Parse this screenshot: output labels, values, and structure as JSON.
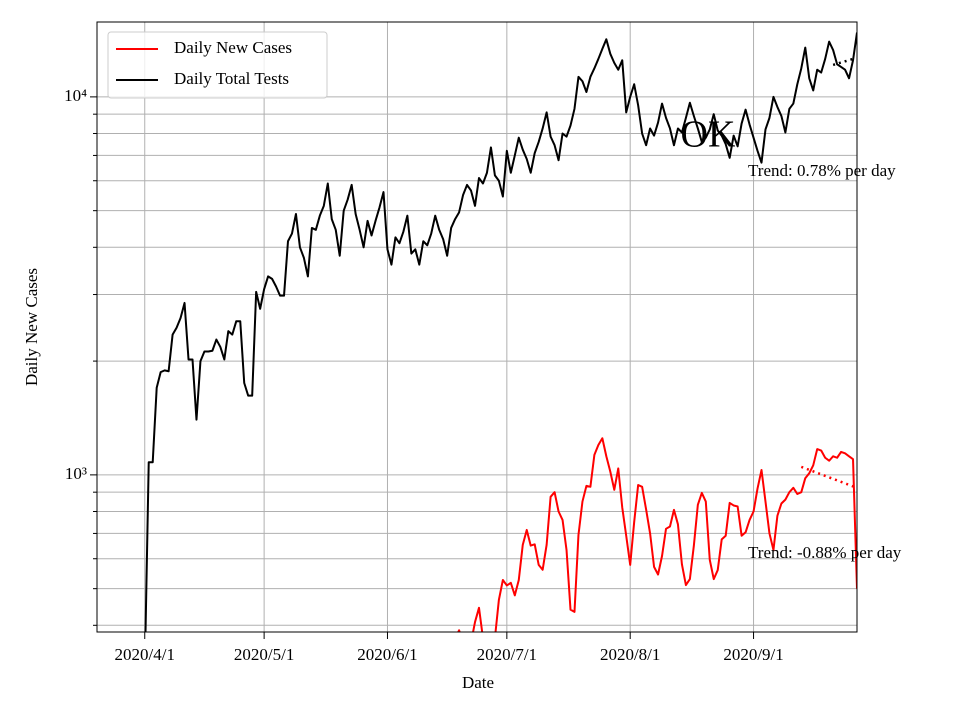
{
  "chart_data": {
    "type": "line",
    "x_label": "Date",
    "y_label": "Daily New Cases",
    "log_scale": "y",
    "grid": true,
    "legend_loc": "upper left",
    "watermark": "OK",
    "xlim": [
      "2020-03-20",
      "2020-09-27"
    ],
    "xticks": [
      {
        "value": "2020-04-01",
        "label": "2020/4/1"
      },
      {
        "value": "2020-05-01",
        "label": "2020/5/1"
      },
      {
        "value": "2020-06-01",
        "label": "2020/6/1"
      },
      {
        "value": "2020-07-01",
        "label": "2020/7/1"
      },
      {
        "value": "2020-08-01",
        "label": "2020/8/1"
      },
      {
        "value": "2020-09-01",
        "label": "2020/9/1"
      }
    ],
    "ylim": [
      384,
      15780
    ],
    "yticks": [
      {
        "value": 1000,
        "label": "10³"
      },
      {
        "value": 10000,
        "label": "10⁴"
      }
    ],
    "yminorticks": [
      400,
      500,
      600,
      700,
      800,
      900,
      2000,
      3000,
      4000,
      5000,
      6000,
      7000,
      8000,
      9000
    ],
    "x": [
      "2020-04-01",
      "2020-04-02",
      "2020-04-03",
      "2020-04-04",
      "2020-04-05",
      "2020-04-06",
      "2020-04-07",
      "2020-04-08",
      "2020-04-09",
      "2020-04-10",
      "2020-04-11",
      "2020-04-12",
      "2020-04-13",
      "2020-04-14",
      "2020-04-15",
      "2020-04-16",
      "2020-04-17",
      "2020-04-18",
      "2020-04-19",
      "2020-04-20",
      "2020-04-21",
      "2020-04-22",
      "2020-04-23",
      "2020-04-24",
      "2020-04-25",
      "2020-04-26",
      "2020-04-27",
      "2020-04-28",
      "2020-04-29",
      "2020-04-30",
      "2020-05-01",
      "2020-05-02",
      "2020-05-03",
      "2020-05-04",
      "2020-05-05",
      "2020-05-06",
      "2020-05-07",
      "2020-05-08",
      "2020-05-09",
      "2020-05-10",
      "2020-05-11",
      "2020-05-12",
      "2020-05-13",
      "2020-05-14",
      "2020-05-15",
      "2020-05-16",
      "2020-05-17",
      "2020-05-18",
      "2020-05-19",
      "2020-05-20",
      "2020-05-21",
      "2020-05-22",
      "2020-05-23",
      "2020-05-24",
      "2020-05-25",
      "2020-05-26",
      "2020-05-27",
      "2020-05-28",
      "2020-05-29",
      "2020-05-30",
      "2020-05-31",
      "2020-06-01",
      "2020-06-02",
      "2020-06-03",
      "2020-06-04",
      "2020-06-05",
      "2020-06-06",
      "2020-06-07",
      "2020-06-08",
      "2020-06-09",
      "2020-06-10",
      "2020-06-11",
      "2020-06-12",
      "2020-06-13",
      "2020-06-14",
      "2020-06-15",
      "2020-06-16",
      "2020-06-17",
      "2020-06-18",
      "2020-06-19",
      "2020-06-20",
      "2020-06-21",
      "2020-06-22",
      "2020-06-23",
      "2020-06-24",
      "2020-06-25",
      "2020-06-26",
      "2020-06-27",
      "2020-06-28",
      "2020-06-29",
      "2020-06-30",
      "2020-07-01",
      "2020-07-02",
      "2020-07-03",
      "2020-07-04",
      "2020-07-05",
      "2020-07-06",
      "2020-07-07",
      "2020-07-08",
      "2020-07-09",
      "2020-07-10",
      "2020-07-11",
      "2020-07-12",
      "2020-07-13",
      "2020-07-14",
      "2020-07-15",
      "2020-07-16",
      "2020-07-17",
      "2020-07-18",
      "2020-07-19",
      "2020-07-20",
      "2020-07-21",
      "2020-07-22",
      "2020-07-23",
      "2020-07-24",
      "2020-07-25",
      "2020-07-26",
      "2020-07-27",
      "2020-07-28",
      "2020-07-29",
      "2020-07-30",
      "2020-07-31",
      "2020-08-01",
      "2020-08-02",
      "2020-08-03",
      "2020-08-04",
      "2020-08-05",
      "2020-08-06",
      "2020-08-07",
      "2020-08-08",
      "2020-08-09",
      "2020-08-10",
      "2020-08-11",
      "2020-08-12",
      "2020-08-13",
      "2020-08-14",
      "2020-08-15",
      "2020-08-16",
      "2020-08-17",
      "2020-08-18",
      "2020-08-19",
      "2020-08-20",
      "2020-08-21",
      "2020-08-22",
      "2020-08-23",
      "2020-08-24",
      "2020-08-25",
      "2020-08-26",
      "2020-08-27",
      "2020-08-28",
      "2020-08-29",
      "2020-08-30",
      "2020-08-31",
      "2020-09-01",
      "2020-09-02",
      "2020-09-03",
      "2020-09-04",
      "2020-09-05",
      "2020-09-06",
      "2020-09-07",
      "2020-09-08",
      "2020-09-09",
      "2020-09-10",
      "2020-09-11",
      "2020-09-12",
      "2020-09-13",
      "2020-09-14",
      "2020-09-15",
      "2020-09-16",
      "2020-09-17",
      "2020-09-18",
      "2020-09-19",
      "2020-09-20",
      "2020-09-21",
      "2020-09-22",
      "2020-09-23",
      "2020-09-24",
      "2020-09-25",
      "2020-09-26",
      "2020-09-27"
    ],
    "series": [
      {
        "name": "Daily New Cases",
        "color": "#ff0000",
        "values": [
          null,
          null,
          null,
          null,
          null,
          null,
          null,
          null,
          null,
          null,
          null,
          null,
          null,
          null,
          null,
          null,
          null,
          null,
          null,
          null,
          null,
          null,
          null,
          null,
          null,
          null,
          null,
          null,
          null,
          null,
          null,
          null,
          null,
          null,
          null,
          null,
          null,
          null,
          null,
          null,
          null,
          null,
          null,
          null,
          null,
          null,
          null,
          null,
          null,
          null,
          null,
          null,
          null,
          null,
          null,
          null,
          null,
          null,
          null,
          null,
          null,
          null,
          null,
          null,
          null,
          null,
          null,
          null,
          null,
          null,
          null,
          null,
          null,
          null,
          null,
          null,
          null,
          null,
          370,
          388,
          360,
          350,
          360,
          408,
          445,
          370,
          360,
          340,
          370,
          467,
          527,
          510,
          518,
          480,
          527,
          653,
          715,
          650,
          655,
          578,
          561,
          653,
          875,
          900,
          800,
          760,
          633,
          440,
          434,
          694,
          850,
          935,
          930,
          1130,
          1200,
          1250,
          1120,
          1020,
          913,
          1040,
          820,
          690,
          578,
          750,
          940,
          930,
          810,
          700,
          571,
          545,
          610,
          720,
          730,
          808,
          740,
          580,
          511,
          530,
          650,
          833,
          896,
          850,
          596,
          530,
          560,
          675,
          690,
          843,
          830,
          825,
          690,
          705,
          760,
          800,
          920,
          1030,
          850,
          700,
          633,
          780,
          840,
          860,
          900,
          924,
          890,
          900,
          980,
          1010,
          1060,
          1170,
          1160,
          1110,
          1090,
          1120,
          1110,
          1150,
          1140,
          1120,
          1100,
          500
        ]
      },
      {
        "name": "Daily Total Tests",
        "color": "#000000",
        "values": [
          300,
          1080,
          1080,
          1700,
          1870,
          1890,
          1880,
          2350,
          2450,
          2600,
          2850,
          2020,
          2020,
          1400,
          2000,
          2120,
          2120,
          2130,
          2280,
          2180,
          2020,
          2400,
          2350,
          2550,
          2550,
          1750,
          1620,
          1620,
          3050,
          2750,
          3100,
          3350,
          3300,
          3150,
          2980,
          2980,
          4150,
          4350,
          4900,
          4000,
          3750,
          3350,
          4500,
          4450,
          4850,
          5150,
          5900,
          4750,
          4450,
          3800,
          5000,
          5350,
          5850,
          4900,
          4450,
          4000,
          4700,
          4300,
          4700,
          5100,
          5600,
          3950,
          3600,
          4250,
          4100,
          4400,
          4850,
          3850,
          3950,
          3600,
          4150,
          4050,
          4350,
          4850,
          4450,
          4200,
          3800,
          4500,
          4750,
          4950,
          5500,
          5850,
          5650,
          5150,
          6100,
          5900,
          6300,
          7350,
          6200,
          6000,
          5450,
          7200,
          6300,
          7000,
          7800,
          7250,
          6850,
          6300,
          7100,
          7600,
          8250,
          9100,
          7850,
          7450,
          6800,
          8000,
          7850,
          8400,
          9300,
          11300,
          11000,
          10300,
          11300,
          11900,
          12600,
          13400,
          14200,
          13000,
          12300,
          11800,
          12500,
          9100,
          10000,
          10800,
          9500,
          8000,
          7450,
          8250,
          7900,
          8550,
          9600,
          8800,
          8250,
          7450,
          8250,
          8050,
          8800,
          9650,
          8900,
          8250,
          7600,
          7800,
          8200,
          9000,
          8150,
          7900,
          7500,
          6900,
          7900,
          7400,
          8500,
          9250,
          8450,
          7800,
          7200,
          6700,
          8200,
          8800,
          10000,
          9400,
          8900,
          8050,
          9300,
          9600,
          10800,
          11900,
          13500,
          11200,
          10400,
          11800,
          11600,
          12600,
          14000,
          13300,
          12200,
          12000,
          11800,
          11200,
          12500,
          14800
        ]
      }
    ],
    "trend_lines": [
      {
        "label": "Trend: 0.78% per day",
        "color": "#000000",
        "x": [
          "2020-09-21",
          "2020-09-26"
        ],
        "values": [
          12150,
          12600
        ]
      },
      {
        "label": "Trend: -0.88% per day",
        "color": "#ff0000",
        "x": [
          "2020-09-13",
          "2020-09-27"
        ],
        "values": [
          1050,
          924
        ]
      }
    ]
  }
}
